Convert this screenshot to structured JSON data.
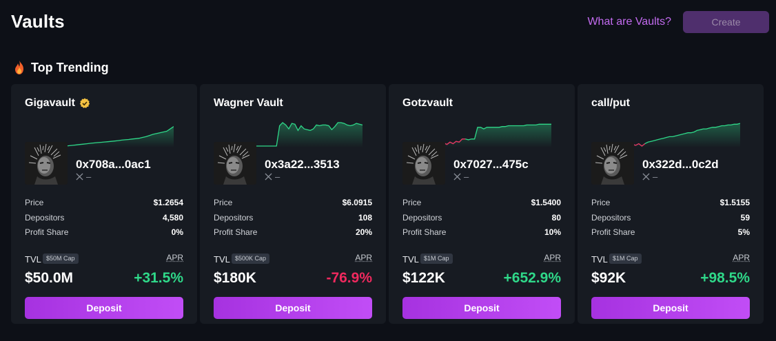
{
  "header": {
    "title": "Vaults",
    "help_link": "What are Vaults?",
    "create_label": "Create"
  },
  "section": {
    "title": "Top Trending",
    "icon": "fire-icon"
  },
  "colors": {
    "accent": "#b840ee",
    "positive": "#2fd889",
    "negative": "#f0295e",
    "background": "#0d1017",
    "card": "#171b22"
  },
  "vaults": [
    {
      "name": "Gigavault",
      "verified": true,
      "address": "0x708a...0ac1",
      "social": "–",
      "stats": [
        {
          "label": "Price",
          "value": "$1.2654"
        },
        {
          "label": "Depositors",
          "value": "4,580"
        },
        {
          "label": "Profit Share",
          "value": "0%"
        }
      ],
      "tvl_label": "TVL",
      "cap": "$50M Cap",
      "apr_label": "APR",
      "tvl": "$50.0M",
      "apr": "+31.5%",
      "apr_positive": true,
      "deposit_label": "Deposit",
      "spark": [
        0,
        0.5,
        1,
        1.5,
        2,
        2.5,
        3,
        3.5,
        4,
        4.4,
        4.8,
        5.2,
        5.6,
        6,
        6.4,
        7,
        7.6,
        8,
        8.4,
        9,
        9.4,
        10,
        11,
        12,
        13.5,
        15,
        16,
        17,
        18,
        19,
        22,
        25
      ]
    },
    {
      "name": "Wagner Vault",
      "verified": false,
      "address": "0x3a22...3513",
      "social": "–",
      "stats": [
        {
          "label": "Price",
          "value": "$6.0915"
        },
        {
          "label": "Depositors",
          "value": "108"
        },
        {
          "label": "Profit Share",
          "value": "20%"
        }
      ],
      "tvl_label": "TVL",
      "cap": "$500K Cap",
      "apr_label": "APR",
      "tvl": "$180K",
      "apr": "-76.9%",
      "apr_positive": false,
      "deposit_label": "Deposit",
      "spark": [
        0,
        0,
        0,
        0,
        0,
        0,
        0,
        0,
        26,
        30,
        27,
        22,
        29,
        28,
        20,
        26,
        22,
        21,
        20,
        22,
        27,
        26,
        27,
        27,
        26,
        21,
        25,
        30,
        30,
        29,
        27,
        26,
        27,
        29,
        28,
        27
      ]
    },
    {
      "name": "Gotzvault",
      "verified": false,
      "address": "0x7027...475c",
      "social": "–",
      "stats": [
        {
          "label": "Price",
          "value": "$1.5400"
        },
        {
          "label": "Depositors",
          "value": "80"
        },
        {
          "label": "Profit Share",
          "value": "10%"
        }
      ],
      "tvl_label": "TVL",
      "cap": "$1M Cap",
      "apr_label": "APR",
      "tvl": "$122K",
      "apr": "+652.9%",
      "apr_positive": true,
      "deposit_label": "Deposit",
      "spark": [
        4,
        2,
        5,
        3,
        6,
        5,
        9,
        9,
        8,
        9,
        9,
        24,
        24,
        22,
        24,
        24,
        24,
        24,
        24,
        25,
        25,
        26,
        26,
        26,
        26,
        26,
        26,
        27,
        27,
        27,
        27,
        28,
        28,
        28,
        28,
        28
      ]
    },
    {
      "name": "call/put",
      "verified": false,
      "address": "0x322d...0c2d",
      "social": "–",
      "stats": [
        {
          "label": "Price",
          "value": "$1.5155"
        },
        {
          "label": "Depositors",
          "value": "59"
        },
        {
          "label": "Profit Share",
          "value": "5%"
        }
      ],
      "tvl_label": "TVL",
      "cap": "$1M Cap",
      "apr_label": "APR",
      "tvl": "$92K",
      "apr": "+98.5%",
      "apr_positive": true,
      "deposit_label": "Deposit",
      "spark": [
        2,
        1,
        3,
        0,
        3,
        5,
        6,
        7,
        8,
        9,
        10,
        11,
        12,
        12,
        13,
        14,
        15,
        16,
        17,
        17,
        18,
        20,
        21,
        22,
        22,
        23,
        24,
        24,
        25,
        26,
        26,
        27,
        27,
        28,
        28,
        29
      ]
    }
  ]
}
